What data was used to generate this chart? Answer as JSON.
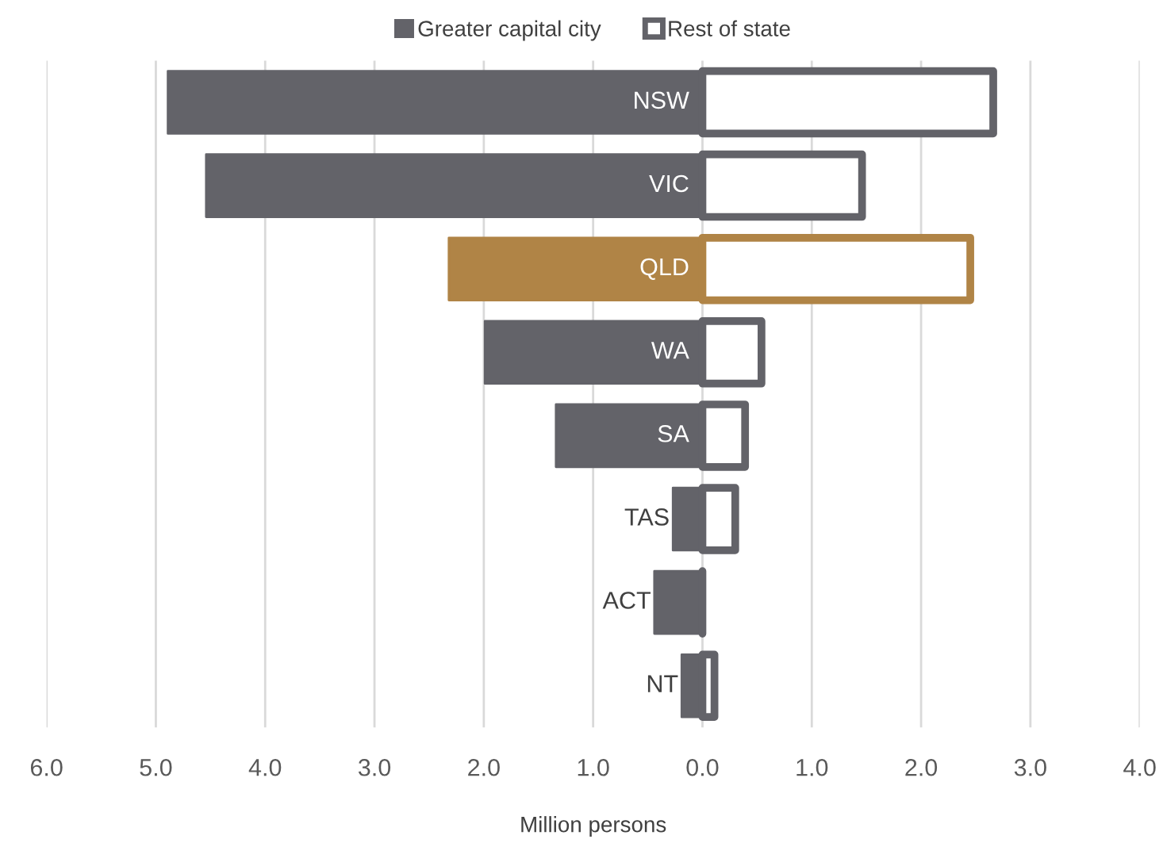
{
  "chart_data": {
    "type": "bar",
    "orientation": "horizontal",
    "stacked": true,
    "xlabel": "Million persons",
    "categories": [
      "NSW",
      "VIC",
      "QLD",
      "WA",
      "SA",
      "TAS",
      "ACT",
      "NT"
    ],
    "series": [
      {
        "name": "Greater capital city",
        "color": "#636369",
        "colors": [
          "#636369",
          "#636369",
          "#b08446",
          "#636369",
          "#636369",
          "#636369",
          "#636369",
          "#636369"
        ],
        "values": [
          -4.89,
          -4.54,
          -2.32,
          -1.99,
          -1.34,
          -0.27,
          -0.44,
          -0.19
        ]
      },
      {
        "name": "Rest of state",
        "color": "#636369",
        "colors": [
          "#636369",
          "#636369",
          "#b08446",
          "#636369",
          "#636369",
          "#636369",
          "#636369",
          "#636369"
        ],
        "values": [
          2.66,
          1.46,
          2.45,
          0.54,
          0.39,
          0.3,
          0.0,
          0.11
        ]
      }
    ],
    "xlim": [
      -6,
      4
    ],
    "xticks": [
      {
        "value": -6,
        "label": "6.0"
      },
      {
        "value": -5,
        "label": "5.0"
      },
      {
        "value": -4,
        "label": "4.0"
      },
      {
        "value": -3,
        "label": "3.0"
      },
      {
        "value": -2,
        "label": "2.0"
      },
      {
        "value": -1,
        "label": "1.0"
      },
      {
        "value": 0,
        "label": "0.0"
      },
      {
        "value": 1,
        "label": "1.0"
      },
      {
        "value": 2,
        "label": "2.0"
      },
      {
        "value": 3,
        "label": "3.0"
      },
      {
        "value": 4,
        "label": "4.0"
      }
    ],
    "grid": "x",
    "legend": "top"
  }
}
